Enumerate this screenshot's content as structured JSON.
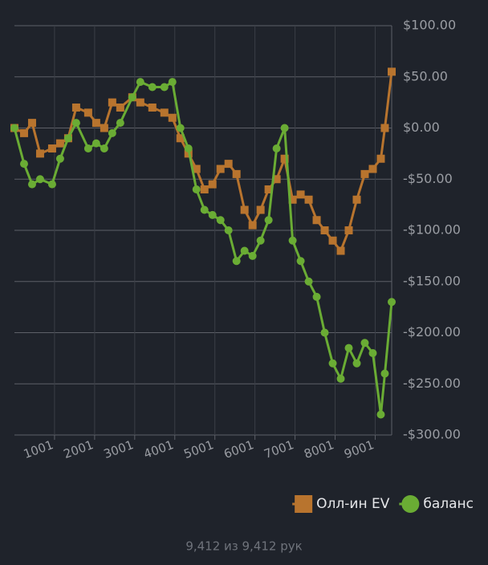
{
  "chart_data": {
    "type": "line",
    "x": [
      1,
      241,
      441,
      641,
      941,
      1141,
      1341,
      1541,
      1841,
      2041,
      2241,
      2441,
      2641,
      2941,
      3141,
      3441,
      3741,
      3941,
      4141,
      4341,
      4541,
      4741,
      4941,
      5141,
      5341,
      5541,
      5741,
      5941,
      6141,
      6341,
      6541,
      6741,
      6941,
      7141,
      7341,
      7541,
      7741,
      7941,
      8141,
      8341,
      8541,
      8741,
      8941,
      9141,
      9241,
      9412
    ],
    "series": [
      {
        "name": "Олл-ин EV",
        "color": "#b8742e",
        "marker": "square",
        "values": [
          0,
          -5,
          5,
          -25,
          -20,
          -15,
          -10,
          20,
          15,
          5,
          0,
          25,
          20,
          30,
          25,
          20,
          15,
          10,
          -10,
          -25,
          -40,
          -60,
          -55,
          -40,
          -35,
          -45,
          -80,
          -95,
          -80,
          -60,
          -50,
          -30,
          -70,
          -65,
          -70,
          -90,
          -100,
          -110,
          -120,
          -100,
          -70,
          -45,
          -40,
          -30,
          0,
          55
        ]
      },
      {
        "name": "баланс",
        "color": "#6aac34",
        "marker": "circle",
        "values": [
          0,
          -35,
          -55,
          -50,
          -55,
          -30,
          -10,
          5,
          -20,
          -15,
          -20,
          -5,
          5,
          30,
          45,
          40,
          40,
          45,
          0,
          -20,
          -60,
          -80,
          -85,
          -90,
          -100,
          -130,
          -120,
          -125,
          -110,
          -90,
          -20,
          0,
          -110,
          -130,
          -150,
          -165,
          -200,
          -230,
          -245,
          -215,
          -230,
          -210,
          -220,
          -280,
          -240,
          -170
        ]
      }
    ],
    "xlim": [
      1,
      9412
    ],
    "xticks": [
      1001,
      2001,
      3001,
      4001,
      5001,
      6001,
      7001,
      8001,
      9001
    ],
    "ylim": [
      -300,
      100
    ],
    "yticks": [
      {
        "value": 100,
        "label": "$100.00"
      },
      {
        "value": 50,
        "label": "$50.00"
      },
      {
        "value": 0,
        "label": "$0.00"
      },
      {
        "value": -50,
        "label": "-$50.00"
      },
      {
        "value": -100,
        "label": "-$100.00"
      },
      {
        "value": -150,
        "label": "-$150.00"
      },
      {
        "value": -200,
        "label": "-$200.00"
      },
      {
        "value": -250,
        "label": "-$250.00"
      },
      {
        "value": -300,
        "label": "-$300.00"
      }
    ],
    "y_axis_side": "right",
    "grid": true,
    "legend": "bottom-right",
    "footer": "9,412 из 9,412 рук"
  }
}
